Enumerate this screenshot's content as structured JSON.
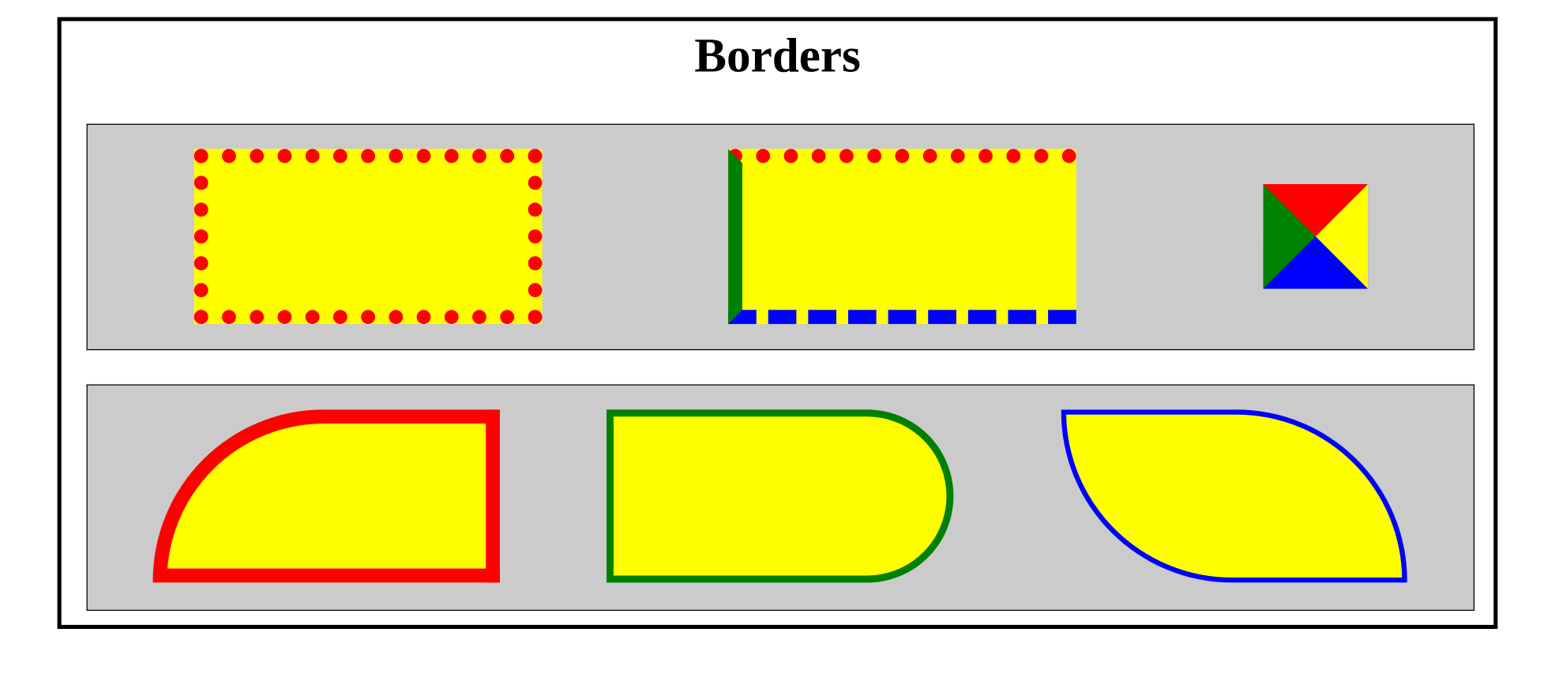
{
  "header": {
    "title": "Borders"
  }
}
